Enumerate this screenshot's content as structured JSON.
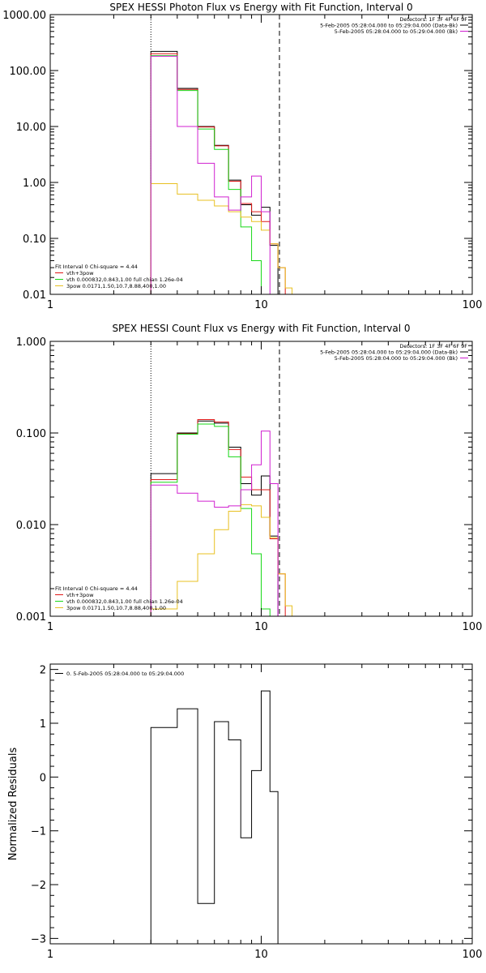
{
  "chart_data": [
    {
      "type": "line",
      "title": "SPEX HESSI Photon Flux vs Energy with Fit Function, Interval 0",
      "xlabel": "",
      "ylabel": "",
      "xscale": "log",
      "yscale": "log",
      "xlim": [
        1,
        100
      ],
      "ylim": [
        0.01,
        1000
      ],
      "xticks": [
        1,
        10,
        100
      ],
      "xticklabels": [
        "1",
        "10",
        "100"
      ],
      "yticks": [
        0.01,
        0.1,
        1,
        10,
        100,
        1000
      ],
      "yticklabels": [
        "0.01",
        "0.10",
        "1.00",
        "10.00",
        "100.00",
        "1000.00"
      ],
      "vlines": [
        {
          "x": 3,
          "style": "dotted"
        },
        {
          "x": 12.2,
          "style": "dashed"
        }
      ],
      "edges": [
        3,
        4,
        5,
        6,
        7,
        8,
        9,
        10,
        11,
        12,
        13,
        14,
        15
      ],
      "series": [
        {
          "color": "#000000",
          "values": [
            220,
            48,
            10,
            4.6,
            1.1,
            0.4,
            0.26,
            0.36,
            0.075,
            null,
            null,
            null
          ]
        },
        {
          "color": "#e01818",
          "values": [
            200,
            46,
            9.8,
            4.5,
            1.05,
            0.42,
            0.3,
            0.2,
            0.08,
            0.03,
            null,
            null
          ]
        },
        {
          "color": "#18d818",
          "values": [
            185,
            44,
            9,
            3.9,
            0.75,
            0.16,
            0.04,
            0.01,
            null,
            null,
            null,
            null
          ]
        },
        {
          "color": "#e8c020",
          "values": [
            0.95,
            0.62,
            0.48,
            0.38,
            0.3,
            0.24,
            0.2,
            0.14,
            0.08,
            0.03,
            0.013,
            null
          ]
        },
        {
          "color": "#d020d0",
          "values": [
            180,
            10,
            2.2,
            0.55,
            0.32,
            0.55,
            1.3,
            0.3,
            null,
            null,
            null,
            null
          ]
        }
      ],
      "legend": {
        "placement": "bottom-left",
        "heading": "Fit Interval 0   Chi-square = 4.44",
        "entries": [
          {
            "label": "vth+3pow",
            "color": "#e01818"
          },
          {
            "label": "vth 0.000832,0.843,1.00  full chian 1.26e-04",
            "color": "#18d818"
          },
          {
            "label": "3pow 0.0171,1.50,10.7,8.88,400,1.00",
            "color": "#e8c020"
          }
        ]
      },
      "legend_right": {
        "placement": "top-right",
        "lines": [
          {
            "label": "Detectors: 1F 3F 4F 6F 9F",
            "color": null
          },
          {
            "label": "5-Feb-2005 05:28:04.000 to 05:29:04.000 (Data-Bk)",
            "color": "#000000"
          },
          {
            "label": "5-Feb-2005 05:28:04.000 to 05:29:04.000 (Bk)",
            "color": "#d020d0"
          }
        ]
      }
    },
    {
      "type": "line",
      "title": "SPEX HESSI Count Flux vs Energy with Fit Function, Interval 0",
      "xlabel": "",
      "ylabel": "",
      "xscale": "log",
      "yscale": "log",
      "xlim": [
        1,
        100
      ],
      "ylim": [
        0.001,
        1
      ],
      "xticks": [
        1,
        10,
        100
      ],
      "xticklabels": [
        "1",
        "10",
        "100"
      ],
      "yticks": [
        0.001,
        0.01,
        0.1,
        1
      ],
      "yticklabels": [
        "0.001",
        "0.010",
        "0.100",
        "1.000"
      ],
      "vlines": [
        {
          "x": 3,
          "style": "dotted"
        },
        {
          "x": 12.2,
          "style": "dashed"
        }
      ],
      "edges": [
        3,
        4,
        5,
        6,
        7,
        8,
        9,
        10,
        11,
        12,
        13,
        14,
        15
      ],
      "series": [
        {
          "color": "#000000",
          "values": [
            0.036,
            0.1,
            0.135,
            0.128,
            0.07,
            0.028,
            0.021,
            0.034,
            0.0075,
            null,
            null,
            null
          ]
        },
        {
          "color": "#e01818",
          "values": [
            0.031,
            0.098,
            0.14,
            0.132,
            0.066,
            0.033,
            0.024,
            0.024,
            0.007,
            0.0029,
            null,
            null
          ]
        },
        {
          "color": "#18d818",
          "values": [
            0.029,
            0.097,
            0.125,
            0.118,
            0.055,
            0.015,
            0.0048,
            0.0012,
            null,
            null,
            null,
            null
          ]
        },
        {
          "color": "#e8c020",
          "values": [
            0.0012,
            0.0024,
            0.0048,
            0.0088,
            0.014,
            0.0165,
            0.016,
            0.012,
            0.0072,
            0.0029,
            0.0013,
            null
          ]
        },
        {
          "color": "#d020d0",
          "values": [
            0.027,
            0.022,
            0.018,
            0.0155,
            0.016,
            0.024,
            0.045,
            0.105,
            0.028,
            null,
            null,
            null
          ]
        }
      ],
      "legend": {
        "placement": "bottom-left",
        "heading": "Fit Interval 0   Chi-square = 4.44",
        "entries": [
          {
            "label": "vth+3pow",
            "color": "#e01818"
          },
          {
            "label": "vth 0.000832,0.843,1.00  full chian 1.26e-04",
            "color": "#18d818"
          },
          {
            "label": "3pow 0.0171,1.50,10.7,8.88,400,1.00",
            "color": "#e8c020"
          }
        ]
      },
      "legend_right": {
        "placement": "top-right",
        "lines": [
          {
            "label": "Detectors: 1F 3F 4F 6F 9F",
            "color": null
          },
          {
            "label": "5-Feb-2005 05:28:04.000 to 05:29:04.000 (Data-Bk)",
            "color": "#000000"
          },
          {
            "label": "5-Feb-2005 05:28:04.000 to 05:29:04.000 (Bk)",
            "color": "#d020d0"
          }
        ]
      }
    },
    {
      "type": "line",
      "title": "",
      "xlabel": "",
      "ylabel": "Normalized Residuals",
      "xscale": "log",
      "yscale": "linear",
      "xlim": [
        1,
        100
      ],
      "ylim": [
        -3.1,
        2.1
      ],
      "xticks": [
        1,
        10,
        100
      ],
      "xticklabels": [
        "1",
        "10",
        "100"
      ],
      "yticks": [
        -3,
        -2,
        -1,
        0,
        1,
        2
      ],
      "yticklabels": [
        "−3",
        "−2",
        "−1",
        "0",
        "1",
        "2"
      ],
      "vlines": [],
      "edges": [
        3,
        4,
        5,
        6,
        7,
        8,
        9,
        10,
        11,
        12
      ],
      "series": [
        {
          "color": "#000000",
          "values": [
            0.92,
            1.27,
            -2.35,
            1.03,
            0.69,
            -1.13,
            0.12,
            1.6,
            -0.27
          ]
        }
      ],
      "legend": {
        "placement": "top-left",
        "heading": "",
        "entries": [
          {
            "label": "0. 5-Feb-2005 05:28:04.000 to 05:29:04.000",
            "color": "#000000"
          }
        ]
      },
      "legend_right": {
        "placement": "",
        "lines": []
      }
    }
  ]
}
